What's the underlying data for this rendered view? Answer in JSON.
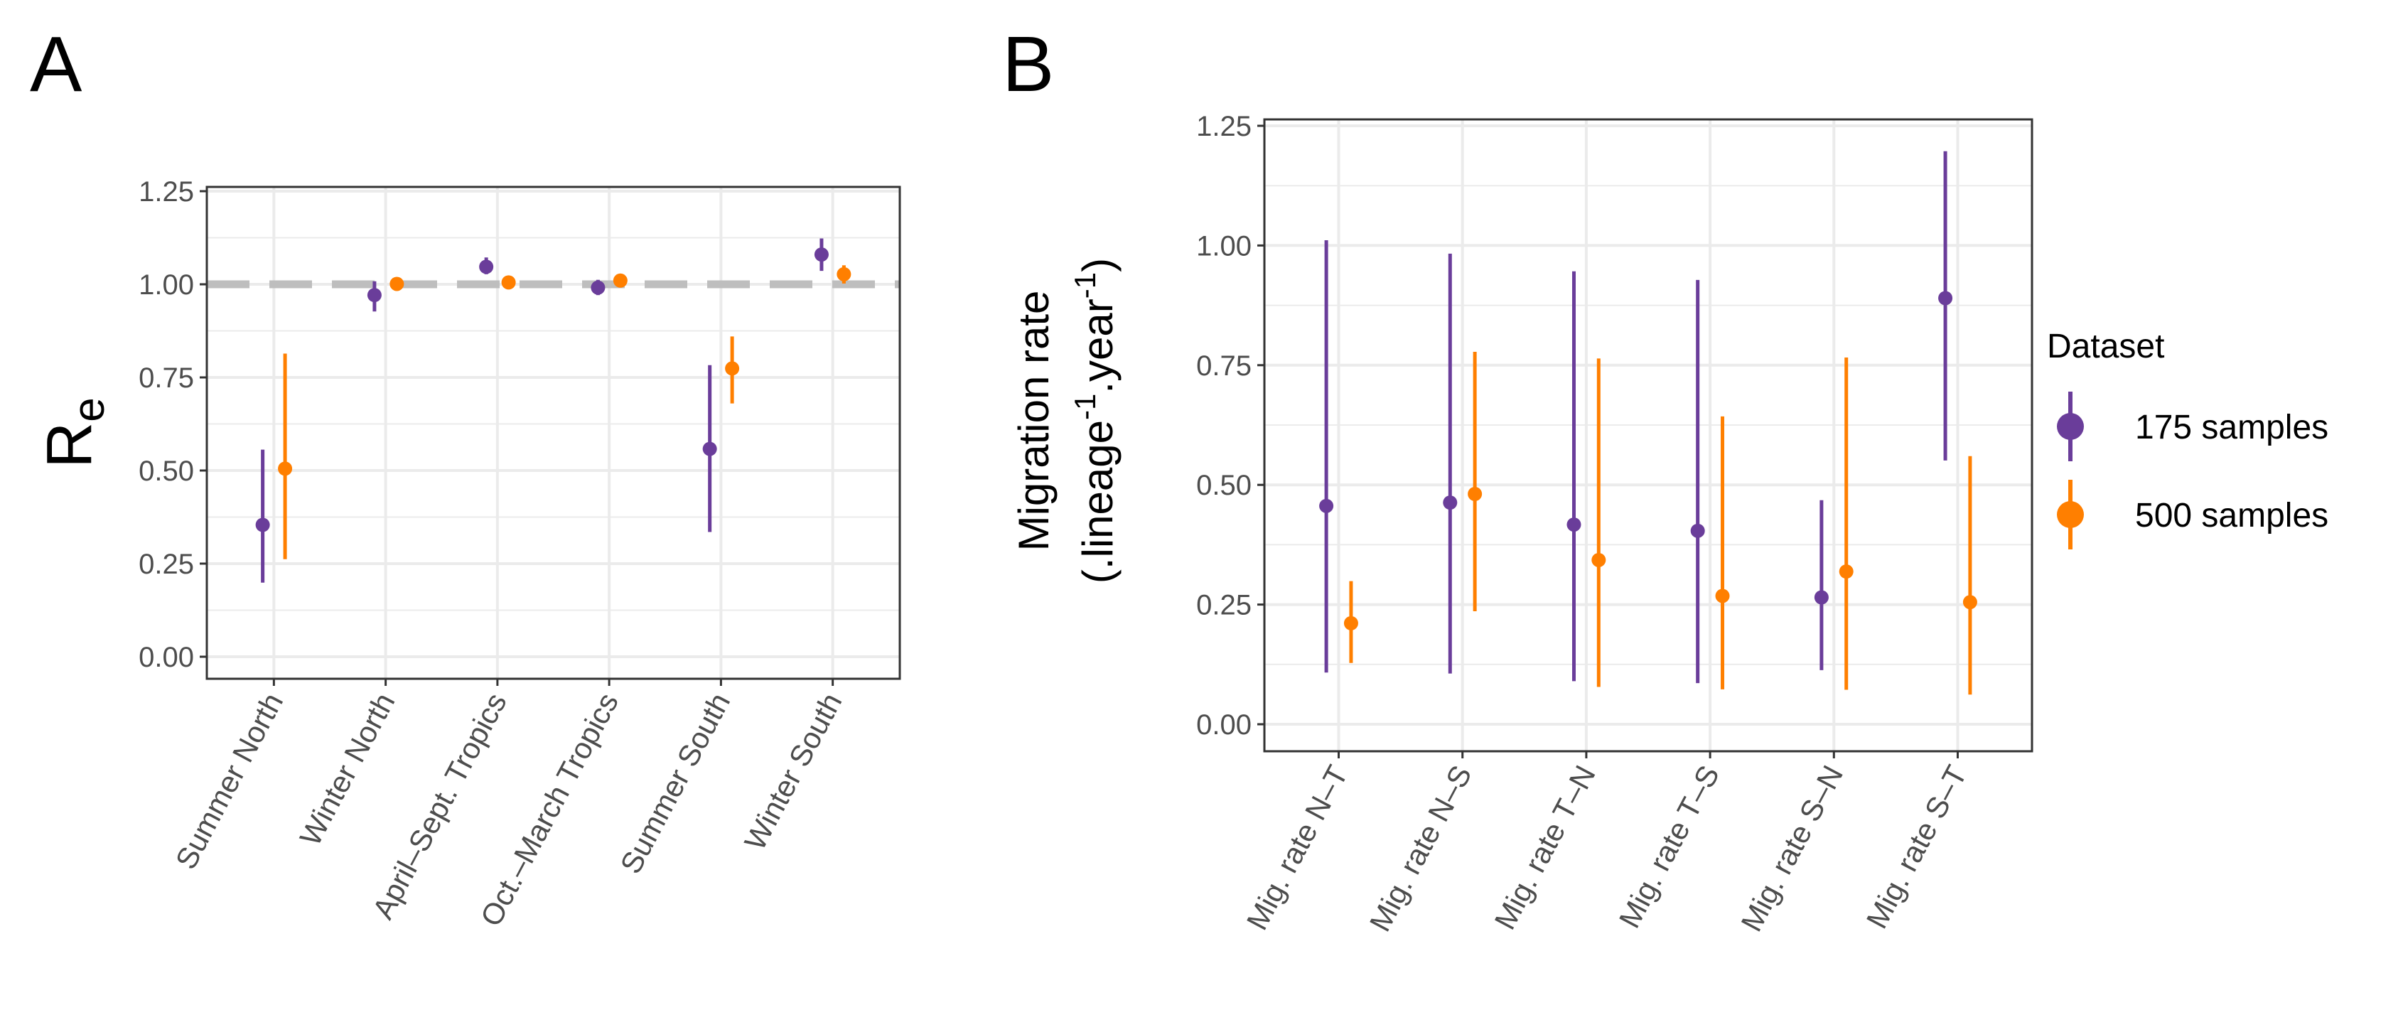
{
  "colors": {
    "175 samples": "#6a3d9a",
    "500 samples": "#ff7f00",
    "reference_line": "#bebebe",
    "grid": "#ebebeb"
  },
  "legend": {
    "title": "Dataset",
    "placement": "right",
    "entries": [
      "175 samples",
      "500 samples"
    ]
  },
  "chart_data": [
    {
      "panel": "A",
      "type": "scatter",
      "subtype": "point-range",
      "ylabel": "R",
      "ylabel_subscript": "e",
      "ylim": [
        0,
        1.25
      ],
      "yticks": [
        "0.00",
        "0.25",
        "0.50",
        "0.75",
        "1.00",
        "1.25"
      ],
      "grid": true,
      "reference_line": {
        "y": 1.0,
        "style": "dashed"
      },
      "categories": [
        "Summer North",
        "Winter North",
        "April–Sept. Tropics",
        "Oct.–March Tropics",
        "Summer South",
        "Winter South"
      ],
      "series": [
        {
          "name": "175 samples",
          "values": [
            0.354,
            0.971,
            1.047,
            0.991,
            0.558,
            1.08
          ],
          "lower": [
            0.199,
            0.927,
            1.027,
            0.971,
            0.335,
            1.036
          ],
          "upper": [
            0.556,
            1.008,
            1.072,
            1.012,
            0.783,
            1.123
          ]
        },
        {
          "name": "500 samples",
          "values": [
            0.505,
            1.001,
            1.005,
            1.01,
            0.774,
            1.027
          ],
          "lower": [
            0.262,
            0.984,
            0.99,
            0.999,
            0.68,
            1.002
          ],
          "upper": [
            0.814,
            1.018,
            1.018,
            1.021,
            0.86,
            1.051
          ]
        }
      ]
    },
    {
      "panel": "B",
      "type": "scatter",
      "subtype": "point-range",
      "ylabel": "Migration rate",
      "ylabel_line2": [
        "(.lineage",
        "-1",
        ".year",
        "-1",
        ")"
      ],
      "ylim": [
        0,
        1.25
      ],
      "yticks": [
        "0.00",
        "0.25",
        "0.50",
        "0.75",
        "1.00",
        "1.25"
      ],
      "grid": true,
      "categories": [
        "Mig. rate N–T",
        "Mig. rate N–S",
        "Mig. rate T–N",
        "Mig. rate T–S",
        "Mig. rate S–N",
        "Mig. rate S–T"
      ],
      "series": [
        {
          "name": "175 samples",
          "values": [
            0.456,
            0.463,
            0.417,
            0.404,
            0.265,
            0.89
          ],
          "lower": [
            0.108,
            0.106,
            0.09,
            0.086,
            0.113,
            0.551
          ],
          "upper": [
            1.011,
            0.983,
            0.946,
            0.928,
            0.468,
            1.197
          ]
        },
        {
          "name": "500 samples",
          "values": [
            0.211,
            0.481,
            0.343,
            0.268,
            0.319,
            0.255
          ],
          "lower": [
            0.128,
            0.236,
            0.078,
            0.073,
            0.072,
            0.062
          ],
          "upper": [
            0.299,
            0.778,
            0.764,
            0.643,
            0.766,
            0.56
          ]
        }
      ]
    }
  ]
}
